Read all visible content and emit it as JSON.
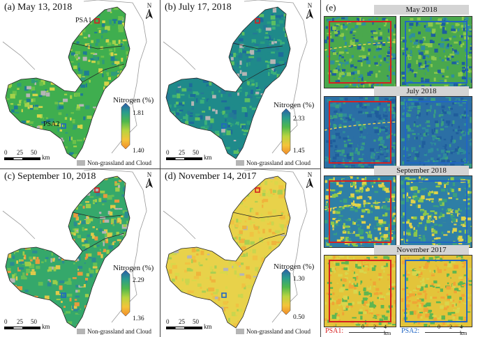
{
  "colors": {
    "psa1": "#d62020",
    "psa2": "#2166c4",
    "non_grassland": "#b5b5b5"
  },
  "panels": [
    {
      "label": "(a) May 13, 2018",
      "legend_title": "Nitrogen (%)",
      "max": "1.81",
      "min": "1.40",
      "scale_ticks": [
        "0",
        "25",
        "50"
      ],
      "scale_unit": "km",
      "non_grassland": "Non-grassland and Cloud",
      "north": "N",
      "psa1_label": "PSA1",
      "psa2_label": "PSA2",
      "tone": "green"
    },
    {
      "label": "(b) July 17, 2018",
      "legend_title": "Nitrogen (%)",
      "max": "2.33",
      "min": "1.45",
      "scale_ticks": [
        "0",
        "25",
        "50"
      ],
      "scale_unit": "km",
      "non_grassland": "Non-grassland and Cloud",
      "north": "N",
      "tone": "teal"
    },
    {
      "label": "(c) September 10, 2018",
      "legend_title": "Nitrogen (%)",
      "max": "2.29",
      "min": "1.36",
      "scale_ticks": [
        "0",
        "25",
        "50"
      ],
      "scale_unit": "km",
      "non_grassland": "Non-grassland and Cloud",
      "north": "N",
      "tone": "mixed"
    },
    {
      "label": "(d) November 14, 2017",
      "legend_title": "Nitrogen (%)",
      "max": "1.30",
      "min": "0.50",
      "scale_ticks": [
        "0",
        "25",
        "50"
      ],
      "scale_unit": "km",
      "non_grassland": "Non-grassland and Cloud",
      "north": "N",
      "tone": "yellow"
    }
  ],
  "panel_e": {
    "label": "(e)",
    "months": [
      "May 2018",
      "July 2018",
      "September 2018",
      "November 2017"
    ],
    "psa1": "PSA1:",
    "psa2": "PSA2:",
    "ticks": [
      "0",
      "2",
      "4 km"
    ]
  }
}
